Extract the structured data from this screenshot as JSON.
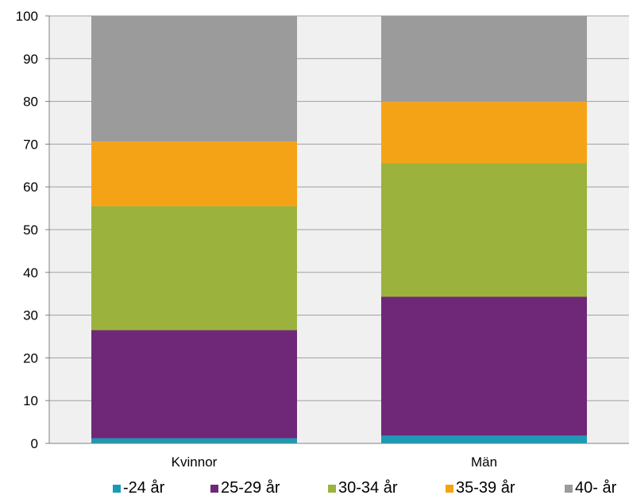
{
  "chart_data": {
    "type": "bar",
    "stacked": true,
    "title": "",
    "xlabel": "",
    "ylabel": "",
    "ylim": [
      0,
      100
    ],
    "yticks": [
      0,
      10,
      20,
      30,
      40,
      50,
      60,
      70,
      80,
      90,
      100
    ],
    "grid": true,
    "legend_position": "bottom",
    "categories": [
      "Kvinnor",
      "Män"
    ],
    "series": [
      {
        "name": "-24 år",
        "color": "#1A9BB5",
        "values": [
          1.2,
          1.8
        ]
      },
      {
        "name": "25-29 år",
        "color": "#6F2878",
        "values": [
          25.3,
          32.5
        ]
      },
      {
        "name": "30-34 år",
        "color": "#9BB33D",
        "values": [
          29.0,
          31.3
        ]
      },
      {
        "name": "35-39 år",
        "color": "#F5A316",
        "values": [
          15.1,
          14.3
        ]
      },
      {
        "name": "40- år",
        "color": "#9B9B9B",
        "values": [
          29.4,
          20.1
        ]
      }
    ]
  },
  "colors": {
    "plot_background": "#F0F0F0",
    "gridline": "#A0A0A0"
  }
}
